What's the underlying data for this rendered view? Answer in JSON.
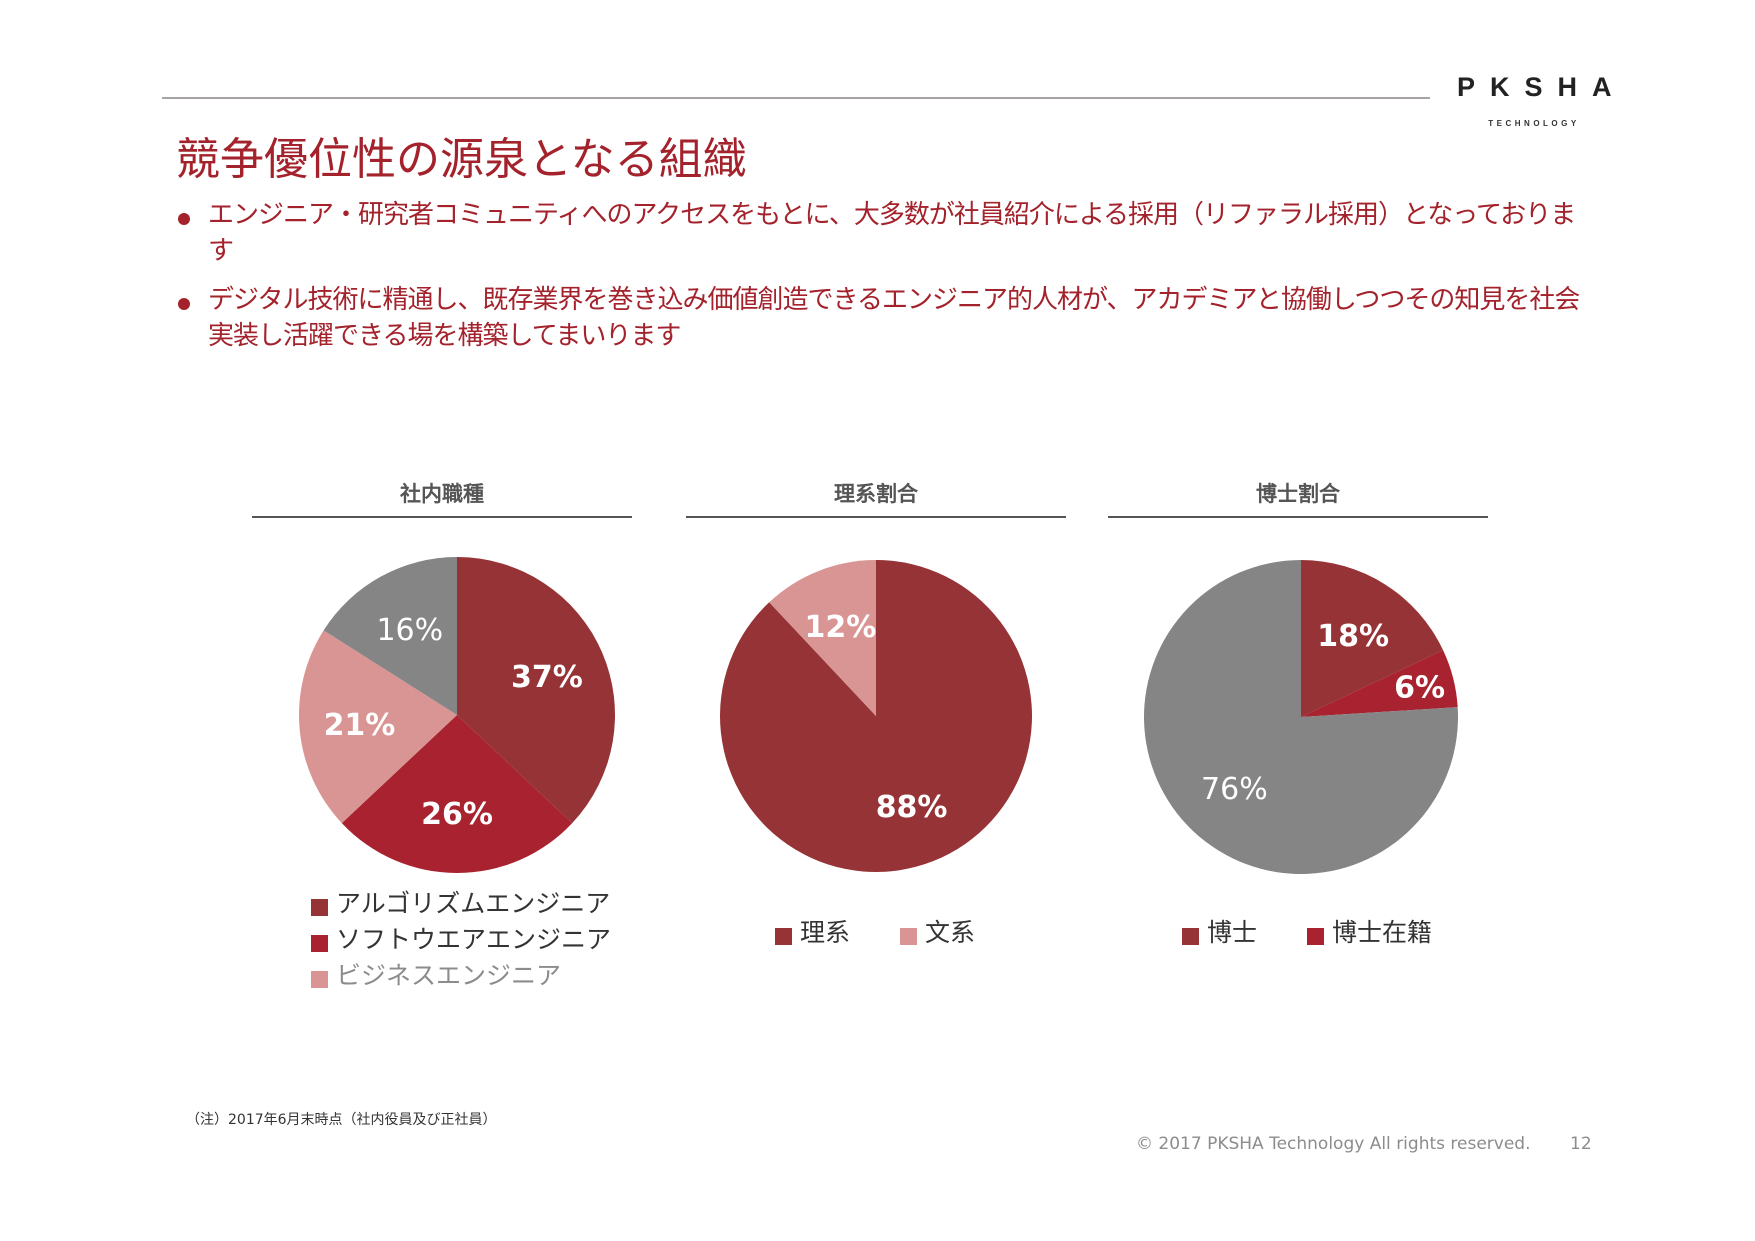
{
  "header": {
    "logo_word": "PKSHA",
    "logo_sub": "TECHNOLOGY"
  },
  "title": "競争優位性の源泉となる組織",
  "bullets": [
    "エンジニア・研究者コミュニティへのアクセスをもとに、大多数が社員紹介による採用（リファラル採用）となっております",
    "デジタル技術に精通し、既存業界を巻き込み価値創造できるエンジニア的人材が、アカデミアと協働しつつその知見を社会実装し活躍できる場を構築してまいります"
  ],
  "colors": {
    "accent": "#a3222b",
    "dark_red": "#953336",
    "red": "#a8222f",
    "pink": "#d99594",
    "gray": "#858585"
  },
  "chart_data": [
    {
      "type": "pie",
      "title": "社内職種",
      "slices": [
        {
          "label": "アルゴリズムエンジニア",
          "value": 37,
          "display": "37%",
          "color": "#953336",
          "text_color": "#ffffff",
          "bold": true
        },
        {
          "label": "ソフトウエアエンジニア",
          "value": 26,
          "display": "26%",
          "color": "#a8222f",
          "text_color": "#ffffff",
          "bold": true
        },
        {
          "label": "ビジネスエンジニア",
          "value": 21,
          "display": "21%",
          "color": "#d99594",
          "text_color": "#ffffff",
          "bold": true
        },
        {
          "label": "",
          "value": 16,
          "display": "16%",
          "color": "#858585",
          "text_color": "#ffffff",
          "bold": false
        }
      ],
      "legend": [
        {
          "label": "アルゴリズムエンジニア",
          "color": "#953336",
          "text_color": "#333333"
        },
        {
          "label": "ソフトウエアエンジニア",
          "color": "#a8222f",
          "text_color": "#333333"
        },
        {
          "label": "ビジネスエンジニア",
          "color": "#d99594",
          "text_color": "#8c8c8c"
        }
      ]
    },
    {
      "type": "pie",
      "title": "理系割合",
      "slices": [
        {
          "label": "理系",
          "value": 88,
          "display": "88%",
          "color": "#953336",
          "text_color": "#ffffff",
          "bold": true
        },
        {
          "label": "文系",
          "value": 12,
          "display": "12%",
          "color": "#d99594",
          "text_color": "#ffffff",
          "bold": true
        }
      ],
      "legend": [
        {
          "label": "理系",
          "color": "#953336",
          "text_color": "#333333"
        },
        {
          "label": "文系",
          "color": "#d99594",
          "text_color": "#333333"
        }
      ]
    },
    {
      "type": "pie",
      "title": "博士割合",
      "slices": [
        {
          "label": "博士",
          "value": 18,
          "display": "18%",
          "color": "#953336",
          "text_color": "#ffffff",
          "bold": true
        },
        {
          "label": "博士在籍",
          "value": 6,
          "display": "6%",
          "color": "#a8222f",
          "text_color": "#ffffff",
          "bold": true
        },
        {
          "label": "",
          "value": 76,
          "display": "76%",
          "color": "#858585",
          "text_color": "#ffffff",
          "bold": false
        }
      ],
      "legend": [
        {
          "label": "博士",
          "color": "#953336",
          "text_color": "#333333"
        },
        {
          "label": "博士在籍",
          "color": "#a8222f",
          "text_color": "#333333"
        }
      ]
    }
  ],
  "footnote": "（注）2017年6月末時点（社内役員及び正社員）",
  "copyright": "© 2017 PKSHA Technology All rights reserved.",
  "page_number": "12"
}
